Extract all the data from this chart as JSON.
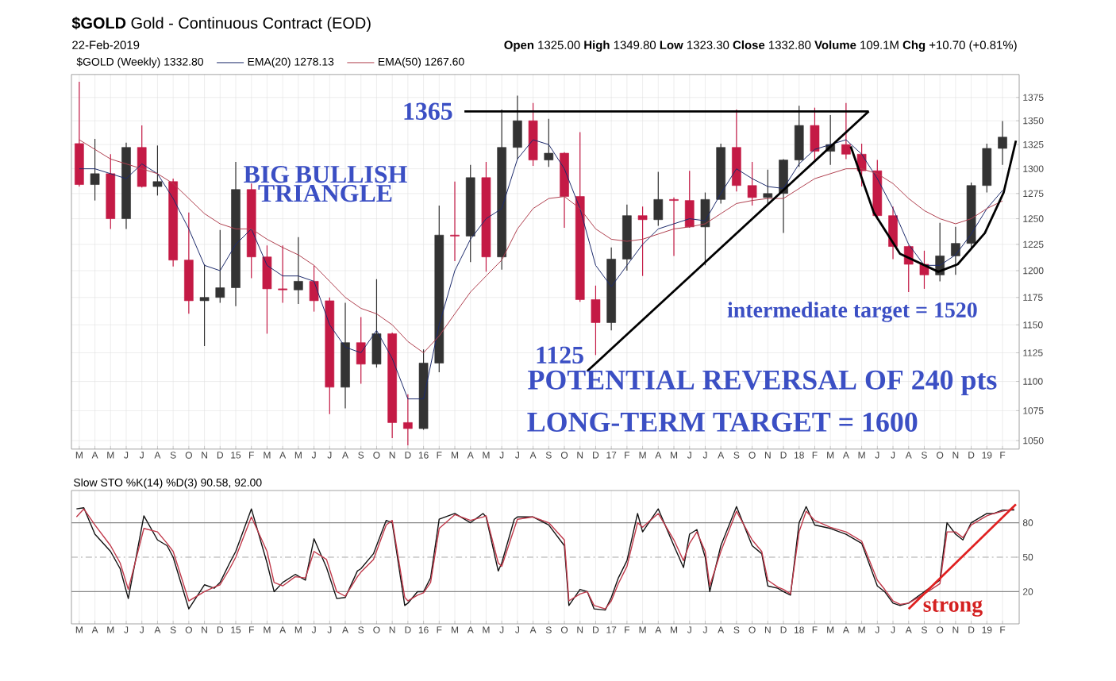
{
  "chart_data": [
    {
      "type": "candlestick",
      "title": "**$GOLD** Gold - Continuous Contract (EOD)",
      "subtitle": "22-Feb-2019",
      "legend_title": "$GOLD (Weekly) 1332.80",
      "x": [
        "2014-03",
        "2014-04",
        "2014-05",
        "2014-06",
        "2014-07",
        "2014-08",
        "2014-09",
        "2014-10",
        "2014-11",
        "2014-12",
        "2015-01",
        "2015-02",
        "2015-03",
        "2015-04",
        "2015-05",
        "2015-06",
        "2015-07",
        "2015-08",
        "2015-09",
        "2015-10",
        "2015-11",
        "2015-12",
        "2016-01",
        "2016-02",
        "2016-03",
        "2016-04",
        "2016-05",
        "2016-06",
        "2016-07",
        "2016-08",
        "2016-09",
        "2016-10",
        "2016-11",
        "2016-12",
        "2017-01",
        "2017-02",
        "2017-03",
        "2017-04",
        "2017-05",
        "2017-06",
        "2017-07",
        "2017-08",
        "2017-09",
        "2017-10",
        "2017-11",
        "2017-12",
        "2018-01",
        "2018-02",
        "2018-03",
        "2018-04",
        "2018-05",
        "2018-06",
        "2018-07",
        "2018-08",
        "2018-09",
        "2018-10",
        "2018-11",
        "2018-12",
        "2019-01",
        "2019-02"
      ],
      "ohlc": [
        [
          1326,
          1392,
          1282,
          1284
        ],
        [
          1284,
          1331,
          1268,
          1295
        ],
        [
          1295,
          1315,
          1240,
          1250
        ],
        [
          1250,
          1327,
          1240,
          1322
        ],
        [
          1322,
          1345,
          1281,
          1282
        ],
        [
          1282,
          1324,
          1273,
          1287
        ],
        [
          1287,
          1290,
          1204,
          1210
        ],
        [
          1210,
          1256,
          1160,
          1172
        ],
        [
          1172,
          1206,
          1131,
          1175
        ],
        [
          1175,
          1239,
          1170,
          1184
        ],
        [
          1184,
          1307,
          1167,
          1279
        ],
        [
          1279,
          1285,
          1193,
          1213
        ],
        [
          1213,
          1224,
          1142,
          1183
        ],
        [
          1183,
          1224,
          1170,
          1182
        ],
        [
          1182,
          1232,
          1169,
          1190
        ],
        [
          1190,
          1205,
          1162,
          1172
        ],
        [
          1172,
          1175,
          1072,
          1095
        ],
        [
          1095,
          1170,
          1077,
          1134
        ],
        [
          1134,
          1157,
          1098,
          1115
        ],
        [
          1115,
          1192,
          1112,
          1142
        ],
        [
          1142,
          1143,
          1052,
          1065
        ],
        [
          1065,
          1089,
          1046,
          1060
        ],
        [
          1060,
          1128,
          1059,
          1116
        ],
        [
          1116,
          1263,
          1108,
          1234
        ],
        [
          1234,
          1287,
          1209,
          1233
        ],
        [
          1233,
          1304,
          1208,
          1291
        ],
        [
          1291,
          1307,
          1199,
          1213
        ],
        [
          1213,
          1362,
          1201,
          1322
        ],
        [
          1322,
          1377,
          1310,
          1350
        ],
        [
          1350,
          1369,
          1303,
          1309
        ],
        [
          1309,
          1352,
          1302,
          1316
        ],
        [
          1316,
          1317,
          1241,
          1272
        ],
        [
          1272,
          1338,
          1171,
          1173
        ],
        [
          1173,
          1186,
          1123,
          1152
        ],
        [
          1152,
          1222,
          1145,
          1211
        ],
        [
          1211,
          1264,
          1200,
          1253
        ],
        [
          1253,
          1262,
          1195,
          1249
        ],
        [
          1249,
          1297,
          1243,
          1269
        ],
        [
          1269,
          1271,
          1214,
          1268
        ],
        [
          1268,
          1298,
          1241,
          1242
        ],
        [
          1242,
          1276,
          1205,
          1269
        ],
        [
          1269,
          1326,
          1265,
          1322
        ],
        [
          1322,
          1362,
          1277,
          1283
        ],
        [
          1283,
          1307,
          1263,
          1271
        ],
        [
          1271,
          1299,
          1264,
          1275
        ],
        [
          1275,
          1310,
          1236,
          1309
        ],
        [
          1309,
          1366,
          1302,
          1345
        ],
        [
          1345,
          1364,
          1307,
          1318
        ],
        [
          1318,
          1356,
          1304,
          1325
        ],
        [
          1325,
          1369,
          1310,
          1315
        ],
        [
          1315,
          1326,
          1282,
          1298
        ],
        [
          1298,
          1309,
          1249,
          1253
        ],
        [
          1253,
          1262,
          1211,
          1223
        ],
        [
          1223,
          1224,
          1180,
          1206
        ],
        [
          1206,
          1219,
          1183,
          1196
        ],
        [
          1196,
          1246,
          1190,
          1214
        ],
        [
          1214,
          1242,
          1196,
          1226
        ],
        [
          1226,
          1286,
          1221,
          1283
        ],
        [
          1283,
          1326,
          1276,
          1321
        ],
        [
          1321,
          1349.8,
          1304,
          1332.8
        ]
      ],
      "colors": [
        "#c41a45",
        "#333333",
        "#c41a45",
        "#333333",
        "#c41a45",
        "#333333",
        "#c41a45",
        "#c41a45",
        "#333333",
        "#333333",
        "#333333",
        "#c41a45",
        "#c41a45",
        "#c41a45",
        "#333333",
        "#c41a45",
        "#c41a45",
        "#333333",
        "#c41a45",
        "#333333",
        "#c41a45",
        "#c41a45",
        "#333333",
        "#333333",
        "#c41a45",
        "#333333",
        "#c41a45",
        "#333333",
        "#333333",
        "#c41a45",
        "#333333",
        "#c41a45",
        "#c41a45",
        "#c41a45",
        "#333333",
        "#333333",
        "#c41a45",
        "#333333",
        "#c41a45",
        "#c41a45",
        "#333333",
        "#333333",
        "#c41a45",
        "#c41a45",
        "#333333",
        "#333333",
        "#333333",
        "#c41a45",
        "#333333",
        "#c41a45",
        "#c41a45",
        "#c41a45",
        "#c41a45",
        "#c41a45",
        "#c41a45",
        "#333333",
        "#333333",
        "#333333",
        "#333333",
        "#333333"
      ],
      "series": [
        {
          "name": "EMA(20) 1278.13",
          "type": "line",
          "color": "#1c2a6b",
          "values": [
            1300,
            1300,
            1295,
            1290,
            1305,
            1295,
            1270,
            1240,
            1205,
            1200,
            1225,
            1240,
            1205,
            1195,
            1195,
            1190,
            1150,
            1130,
            1125,
            1145,
            1120,
            1085,
            1085,
            1150,
            1200,
            1230,
            1250,
            1260,
            1310,
            1330,
            1325,
            1300,
            1260,
            1205,
            1185,
            1205,
            1225,
            1240,
            1245,
            1250,
            1248,
            1275,
            1300,
            1290,
            1282,
            1280,
            1305,
            1320,
            1325,
            1330,
            1315,
            1290,
            1260,
            1225,
            1205,
            1205,
            1215,
            1235,
            1260,
            1278.13
          ]
        },
        {
          "name": "EMA(50) 1267.60",
          "type": "line",
          "color": "#b0404f",
          "values": [
            1330,
            1320,
            1310,
            1305,
            1300,
            1295,
            1285,
            1270,
            1255,
            1245,
            1240,
            1240,
            1230,
            1222,
            1215,
            1205,
            1190,
            1175,
            1165,
            1160,
            1150,
            1135,
            1125,
            1140,
            1160,
            1180,
            1195,
            1210,
            1240,
            1260,
            1270,
            1272,
            1260,
            1240,
            1230,
            1228,
            1230,
            1235,
            1240,
            1242,
            1245,
            1255,
            1265,
            1268,
            1270,
            1270,
            1280,
            1290,
            1295,
            1300,
            1300,
            1295,
            1285,
            1270,
            1258,
            1250,
            1245,
            1250,
            1260,
            1267.6
          ]
        },
        {
          "type": "line",
          "color": "#000000",
          "x": [
            "2016-03-20",
            "2018-05-15"
          ],
          "values": [
            1360,
            1360
          ]
        },
        {
          "type": "line",
          "color": "#000000",
          "x": [
            "2016-11-15",
            "2018-05-15"
          ],
          "values": [
            1109,
            1360
          ]
        },
        {
          "type": "line",
          "color": "#000000",
          "x": [
            "2018-04-10",
            "2018-05-25",
            "2018-07-15",
            "2018-09-28",
            "2018-11-05",
            "2018-12-28",
            "2019-02-03",
            "2019-02-25"
          ],
          "values": [
            1323,
            1256,
            1216,
            1199,
            1206,
            1236,
            1276,
            1329
          ]
        }
      ],
      "xlim": [
        "2014-02-15",
        "2019-03-03"
      ],
      "ylim": [
        1043,
        1400
      ],
      "log": true,
      "xticks": [
        {
          "value": "2014-03",
          "label": "M"
        },
        {
          "value": "2014-04",
          "label": "A"
        },
        {
          "value": "2014-05",
          "label": "M"
        },
        {
          "value": "2014-06",
          "label": "J"
        },
        {
          "value": "2014-07",
          "label": "J"
        },
        {
          "value": "2014-08",
          "label": "A"
        },
        {
          "value": "2014-09",
          "label": "S"
        },
        {
          "value": "2014-10",
          "label": "O"
        },
        {
          "value": "2014-11",
          "label": "N"
        },
        {
          "value": "2014-12",
          "label": "D"
        },
        {
          "value": "2015-01",
          "label": "15"
        },
        {
          "value": "2015-02",
          "label": "F"
        },
        {
          "value": "2015-03",
          "label": "M"
        },
        {
          "value": "2015-04",
          "label": "A"
        },
        {
          "value": "2015-05",
          "label": "M"
        },
        {
          "value": "2015-06",
          "label": "J"
        },
        {
          "value": "2015-07",
          "label": "J"
        },
        {
          "value": "2015-08",
          "label": "A"
        },
        {
          "value": "2015-09",
          "label": "S"
        },
        {
          "value": "2015-10",
          "label": "O"
        },
        {
          "value": "2015-11",
          "label": "N"
        },
        {
          "value": "2015-12",
          "label": "D"
        },
        {
          "value": "2016-01",
          "label": "16"
        },
        {
          "value": "2016-02",
          "label": "F"
        },
        {
          "value": "2016-03",
          "label": "M"
        },
        {
          "value": "2016-04",
          "label": "A"
        },
        {
          "value": "2016-05",
          "label": "M"
        },
        {
          "value": "2016-06",
          "label": "J"
        },
        {
          "value": "2016-07",
          "label": "J"
        },
        {
          "value": "2016-08",
          "label": "A"
        },
        {
          "value": "2016-09",
          "label": "S"
        },
        {
          "value": "2016-10",
          "label": "O"
        },
        {
          "value": "2016-11",
          "label": "N"
        },
        {
          "value": "2016-12",
          "label": "D"
        },
        {
          "value": "2017-01",
          "label": "17"
        },
        {
          "value": "2017-02",
          "label": "F"
        },
        {
          "value": "2017-03",
          "label": "M"
        },
        {
          "value": "2017-04",
          "label": "A"
        },
        {
          "value": "2017-05",
          "label": "M"
        },
        {
          "value": "2017-06",
          "label": "J"
        },
        {
          "value": "2017-07",
          "label": "J"
        },
        {
          "value": "2017-08",
          "label": "A"
        },
        {
          "value": "2017-09",
          "label": "S"
        },
        {
          "value": "2017-10",
          "label": "O"
        },
        {
          "value": "2017-11",
          "label": "N"
        },
        {
          "value": "2017-12",
          "label": "D"
        },
        {
          "value": "2018-01",
          "label": "18"
        },
        {
          "value": "2018-02",
          "label": "F"
        },
        {
          "value": "2018-03",
          "label": "M"
        },
        {
          "value": "2018-04",
          "label": "A"
        },
        {
          "value": "2018-05",
          "label": "M"
        },
        {
          "value": "2018-06",
          "label": "J"
        },
        {
          "value": "2018-07",
          "label": "J"
        },
        {
          "value": "2018-08",
          "label": "A"
        },
        {
          "value": "2018-09",
          "label": "S"
        },
        {
          "value": "2018-10",
          "label": "O"
        },
        {
          "value": "2018-11",
          "label": "N"
        },
        {
          "value": "2018-12",
          "label": "D"
        },
        {
          "value": "2019-01",
          "label": "19"
        },
        {
          "value": "2019-02",
          "label": "F"
        }
      ],
      "yticks": [
        1050,
        1075,
        1100,
        1125,
        1150,
        1175,
        1200,
        1225,
        1250,
        1275,
        1300,
        1325,
        1350,
        1375
      ],
      "grid": true,
      "legend": "top left",
      "annotations": [
        "**Open** 1325.00 **High** 1349.80 **Low** 1323.30 **Close** 1332.80 **Volume** 109.1M **Chg** +10.70 (+0.81%)",
        "BIG BULLISH TRIANGLE",
        {
          "text": "1365",
          "x": "2016-03-20",
          "y": 1360
        },
        {
          "text": "1125",
          "x": "2016-12",
          "y": 1123
        },
        "intermediate target = 1520",
        "POTENTIAL REVERSAL OF 240 pts",
        "LONG-TERM TARGET = 1600"
      ]
    },
    {
      "type": "line",
      "title": "Slow STO %K(14) %D(3) 90.58, 92.00",
      "x": [
        "2014-02-24",
        "2014-03-10",
        "2014-04-01",
        "2014-05-01",
        "2014-05-20",
        "2014-06-05",
        "2014-07-05",
        "2014-08-01",
        "2014-08-20",
        "2014-09-01",
        "2014-10-01",
        "2014-11-01",
        "2014-11-20",
        "2014-12-01",
        "2014-12-20",
        "2015-01-01",
        "2015-02-01",
        "2015-03-01",
        "2015-03-15",
        "2015-04-01",
        "2015-04-25",
        "2015-05-15",
        "2015-06-01",
        "2015-06-25",
        "2015-07-15",
        "2015-08-01",
        "2015-08-25",
        "2015-09-01",
        "2015-09-25",
        "2015-10-20",
        "2015-11-01",
        "2015-11-25",
        "2015-12-01",
        "2015-12-20",
        "2016-01-01",
        "2016-01-15",
        "2016-02-01",
        "2016-03-01",
        "2016-04-01",
        "2016-04-25",
        "2016-05-01",
        "2016-05-25",
        "2016-06-01",
        "2016-06-25",
        "2016-07-01",
        "2016-08-01",
        "2016-09-01",
        "2016-10-01",
        "2016-10-10",
        "2016-11-01",
        "2016-11-15",
        "2016-11-28",
        "2016-12-20",
        "2017-01-01",
        "2017-01-15",
        "2017-02-01",
        "2017-02-20",
        "2017-03-01",
        "2017-04-01",
        "2017-05-01",
        "2017-05-20",
        "2017-06-01",
        "2017-06-15",
        "2017-07-01",
        "2017-07-10",
        "2017-08-01",
        "2017-09-01",
        "2017-10-01",
        "2017-10-20",
        "2017-11-01",
        "2017-11-20",
        "2017-12-01",
        "2017-12-15",
        "2018-01-01",
        "2018-01-15",
        "2018-02-01",
        "2018-03-01",
        "2018-04-01",
        "2018-05-01",
        "2018-06-01",
        "2018-06-15",
        "2018-07-01",
        "2018-07-15",
        "2018-08-01",
        "2018-09-01",
        "2018-10-01",
        "2018-10-15",
        "2018-11-01",
        "2018-11-15",
        "2018-12-01",
        "2019-01-01",
        "2019-01-15",
        "2019-02-01",
        "2019-02-22"
      ],
      "series": [
        {
          "color": "#111111",
          "values": [
            92,
            93,
            70,
            55,
            40,
            14,
            86,
            65,
            60,
            50,
            5,
            26,
            23,
            28,
            45,
            55,
            92,
            45,
            20,
            28,
            35,
            30,
            66,
            41,
            14,
            15,
            38,
            40,
            53,
            82,
            80,
            8,
            10,
            20,
            20,
            32,
            83,
            88,
            80,
            88,
            85,
            38,
            45,
            83,
            85,
            85,
            78,
            60,
            8,
            22,
            20,
            5,
            4,
            15,
            32,
            47,
            88,
            72,
            92,
            60,
            41,
            70,
            74,
            50,
            20,
            60,
            94,
            60,
            53,
            25,
            23,
            20,
            17,
            80,
            94,
            78,
            75,
            70,
            62,
            25,
            20,
            10,
            8,
            10,
            20,
            30,
            80,
            70,
            65,
            80,
            88,
            88,
            91,
            91
          ]
        },
        {
          "color": "#c0394a",
          "values": [
            85,
            92,
            78,
            60,
            45,
            22,
            75,
            72,
            62,
            55,
            12,
            20,
            24,
            26,
            40,
            50,
            85,
            55,
            28,
            25,
            33,
            32,
            55,
            48,
            20,
            16,
            33,
            37,
            48,
            78,
            82,
            15,
            12,
            17,
            19,
            28,
            75,
            87,
            82,
            85,
            86,
            45,
            42,
            75,
            83,
            85,
            80,
            65,
            12,
            18,
            20,
            8,
            5,
            12,
            27,
            42,
            80,
            76,
            88,
            65,
            47,
            62,
            72,
            55,
            25,
            55,
            90,
            65,
            55,
            30,
            24,
            22,
            18,
            72,
            90,
            82,
            76,
            72,
            64,
            30,
            22,
            12,
            9,
            10,
            18,
            27,
            72,
            72,
            67,
            78,
            86,
            88,
            90,
            92
          ]
        },
        {
          "color": "#e02020",
          "x": [
            "2018-08-01",
            "2019-02-25"
          ],
          "values": [
            5,
            96
          ]
        }
      ],
      "xlim": [
        "2014-02-15",
        "2019-03-03"
      ],
      "ylim": [
        -8,
        108
      ],
      "xticks": [
        {
          "value": "2014-03",
          "label": "M"
        },
        {
          "value": "2014-04",
          "label": "A"
        },
        {
          "value": "2014-05",
          "label": "M"
        },
        {
          "value": "2014-06",
          "label": "J"
        },
        {
          "value": "2014-07",
          "label": "J"
        },
        {
          "value": "2014-08",
          "label": "A"
        },
        {
          "value": "2014-09",
          "label": "S"
        },
        {
          "value": "2014-10",
          "label": "O"
        },
        {
          "value": "2014-11",
          "label": "N"
        },
        {
          "value": "2014-12",
          "label": "D"
        },
        {
          "value": "2015-01",
          "label": "15"
        },
        {
          "value": "2015-02",
          "label": "F"
        },
        {
          "value": "2015-03",
          "label": "M"
        },
        {
          "value": "2015-04",
          "label": "A"
        },
        {
          "value": "2015-05",
          "label": "M"
        },
        {
          "value": "2015-06",
          "label": "J"
        },
        {
          "value": "2015-07",
          "label": "J"
        },
        {
          "value": "2015-08",
          "label": "A"
        },
        {
          "value": "2015-09",
          "label": "S"
        },
        {
          "value": "2015-10",
          "label": "O"
        },
        {
          "value": "2015-11",
          "label": "N"
        },
        {
          "value": "2015-12",
          "label": "D"
        },
        {
          "value": "2016-01",
          "label": "16"
        },
        {
          "value": "2016-02",
          "label": "F"
        },
        {
          "value": "2016-03",
          "label": "M"
        },
        {
          "value": "2016-04",
          "label": "A"
        },
        {
          "value": "2016-05",
          "label": "M"
        },
        {
          "value": "2016-06",
          "label": "J"
        },
        {
          "value": "2016-07",
          "label": "J"
        },
        {
          "value": "2016-08",
          "label": "A"
        },
        {
          "value": "2016-09",
          "label": "S"
        },
        {
          "value": "2016-10",
          "label": "O"
        },
        {
          "value": "2016-11",
          "label": "N"
        },
        {
          "value": "2016-12",
          "label": "D"
        },
        {
          "value": "2017-01",
          "label": "17"
        },
        {
          "value": "2017-02",
          "label": "F"
        },
        {
          "value": "2017-03",
          "label": "M"
        },
        {
          "value": "2017-04",
          "label": "A"
        },
        {
          "value": "2017-05",
          "label": "M"
        },
        {
          "value": "2017-06",
          "label": "J"
        },
        {
          "value": "2017-07",
          "label": "J"
        },
        {
          "value": "2017-08",
          "label": "A"
        },
        {
          "value": "2017-09",
          "label": "S"
        },
        {
          "value": "2017-10",
          "label": "O"
        },
        {
          "value": "2017-11",
          "label": "N"
        },
        {
          "value": "2017-12",
          "label": "D"
        },
        {
          "value": "2018-01",
          "label": "18"
        },
        {
          "value": "2018-02",
          "label": "F"
        },
        {
          "value": "2018-03",
          "label": "M"
        },
        {
          "value": "2018-04",
          "label": "A"
        },
        {
          "value": "2018-05",
          "label": "M"
        },
        {
          "value": "2018-06",
          "label": "J"
        },
        {
          "value": "2018-07",
          "label": "J"
        },
        {
          "value": "2018-08",
          "label": "A"
        },
        {
          "value": "2018-09",
          "label": "S"
        },
        {
          "value": "2018-10",
          "label": "O"
        },
        {
          "value": "2018-11",
          "label": "N"
        },
        {
          "value": "2018-12",
          "label": "D"
        },
        {
          "value": "2019-01",
          "label": "19"
        },
        {
          "value": "2019-02",
          "label": "F"
        }
      ],
      "yticks": [
        20,
        50,
        80
      ],
      "grid": "x",
      "ref_lines": [
        {
          "axis": "y",
          "value": 80,
          "color": "#888888"
        },
        {
          "axis": "y",
          "value": 20,
          "color": "#888888"
        },
        {
          "axis": "y",
          "value": 50,
          "color": "#aaaaaa",
          "line_style": "dashed"
        }
      ],
      "annotations": [
        "strong"
      ]
    }
  ]
}
